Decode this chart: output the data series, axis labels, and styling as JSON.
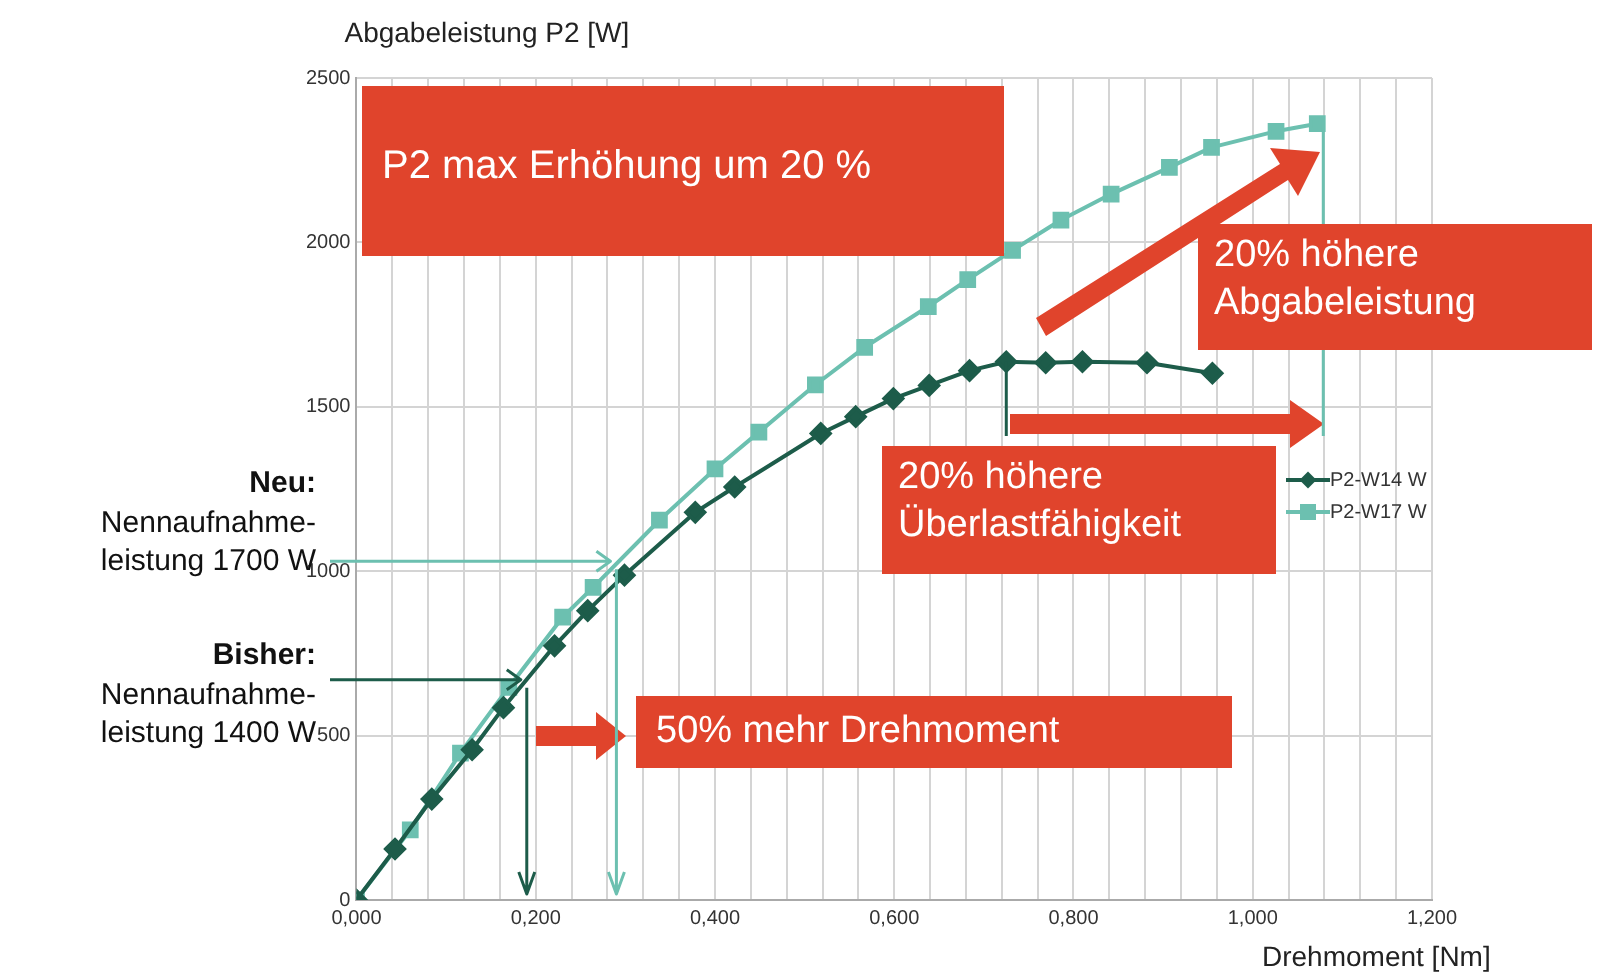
{
  "chart_data": {
    "type": "line",
    "ylabel": "Abgabeleistung P2 [W]",
    "xlabel": "Drehmoment [Nm]",
    "xlim": [
      0,
      1.2
    ],
    "xticks": [
      {
        "value": 0,
        "label": "0,000"
      },
      {
        "value": 0.04,
        "label": null
      },
      {
        "value": 0.08,
        "label": null
      },
      {
        "value": 0.12,
        "label": null
      },
      {
        "value": 0.16,
        "label": null
      },
      {
        "value": 0.2,
        "label": "0,200"
      },
      {
        "value": 0.24,
        "label": null
      },
      {
        "value": 0.28,
        "label": null
      },
      {
        "value": 0.32,
        "label": null
      },
      {
        "value": 0.36,
        "label": null
      },
      {
        "value": 0.4,
        "label": "0,400"
      },
      {
        "value": 0.44,
        "label": null
      },
      {
        "value": 0.48,
        "label": null
      },
      {
        "value": 0.52,
        "label": null
      },
      {
        "value": 0.56,
        "label": null
      },
      {
        "value": 0.6,
        "label": "0,600"
      },
      {
        "value": 0.64,
        "label": null
      },
      {
        "value": 0.68,
        "label": null
      },
      {
        "value": 0.72,
        "label": null
      },
      {
        "value": 0.76,
        "label": null
      },
      {
        "value": 0.8,
        "label": "0,800"
      },
      {
        "value": 0.84,
        "label": null
      },
      {
        "value": 0.88,
        "label": null
      },
      {
        "value": 0.92,
        "label": null
      },
      {
        "value": 0.96,
        "label": null
      },
      {
        "value": 1.0,
        "label": "1,000"
      },
      {
        "value": 1.04,
        "label": null
      },
      {
        "value": 1.08,
        "label": null
      },
      {
        "value": 1.12,
        "label": null
      },
      {
        "value": 1.16,
        "label": null
      },
      {
        "value": 1.2,
        "label": "1,200"
      }
    ],
    "ylim": [
      0,
      2500
    ],
    "yticks": [
      0,
      500,
      1000,
      1500,
      2000,
      2500
    ],
    "grid": true,
    "legend": "right",
    "series": [
      {
        "name": "P2-W14 W",
        "color": "#1d5c4a",
        "marker": "diamond",
        "x": [
          0,
          0.043,
          0.084,
          0.129,
          0.164,
          0.221,
          0.258,
          0.299,
          0.378,
          0.422,
          0.518,
          0.557,
          0.599,
          0.639,
          0.684,
          0.725,
          0.769,
          0.81,
          0.882,
          0.955
        ],
        "values": [
          0,
          155,
          307,
          457,
          585,
          773,
          880,
          988,
          1179,
          1256,
          1419,
          1470,
          1525,
          1565,
          1610,
          1637,
          1634,
          1637,
          1634,
          1602
        ]
      },
      {
        "name": "P2-W17 W",
        "color": "#6cc0b0",
        "marker": "square",
        "x": [
          0,
          0.06,
          0.116,
          0.17,
          0.23,
          0.264,
          0.338,
          0.4,
          0.449,
          0.512,
          0.567,
          0.638,
          0.682,
          0.732,
          0.786,
          0.842,
          0.907,
          0.954,
          1.026,
          1.072
        ],
        "values": [
          0,
          213,
          447,
          647,
          860,
          951,
          1155,
          1311,
          1423,
          1567,
          1681,
          1805,
          1887,
          1976,
          2068,
          2147,
          2228,
          2289,
          2338,
          2361
        ]
      }
    ],
    "annotations": [
      "P2 max Erhöhung um 20 %",
      "20% höhere\nAbgabeleistung",
      "20% höhere\nÜberlastfähigkeit",
      "50% mehr Drehmoment",
      {
        "text": "Neu:\nNennaufnahme-\nleistung 1700 W",
        "x": 0.29,
        "y": 1030
      },
      {
        "text": "Bisher:\nNennaufnahme-\nleistung 1400 W",
        "x": 0.19,
        "y": 670
      }
    ]
  }
}
